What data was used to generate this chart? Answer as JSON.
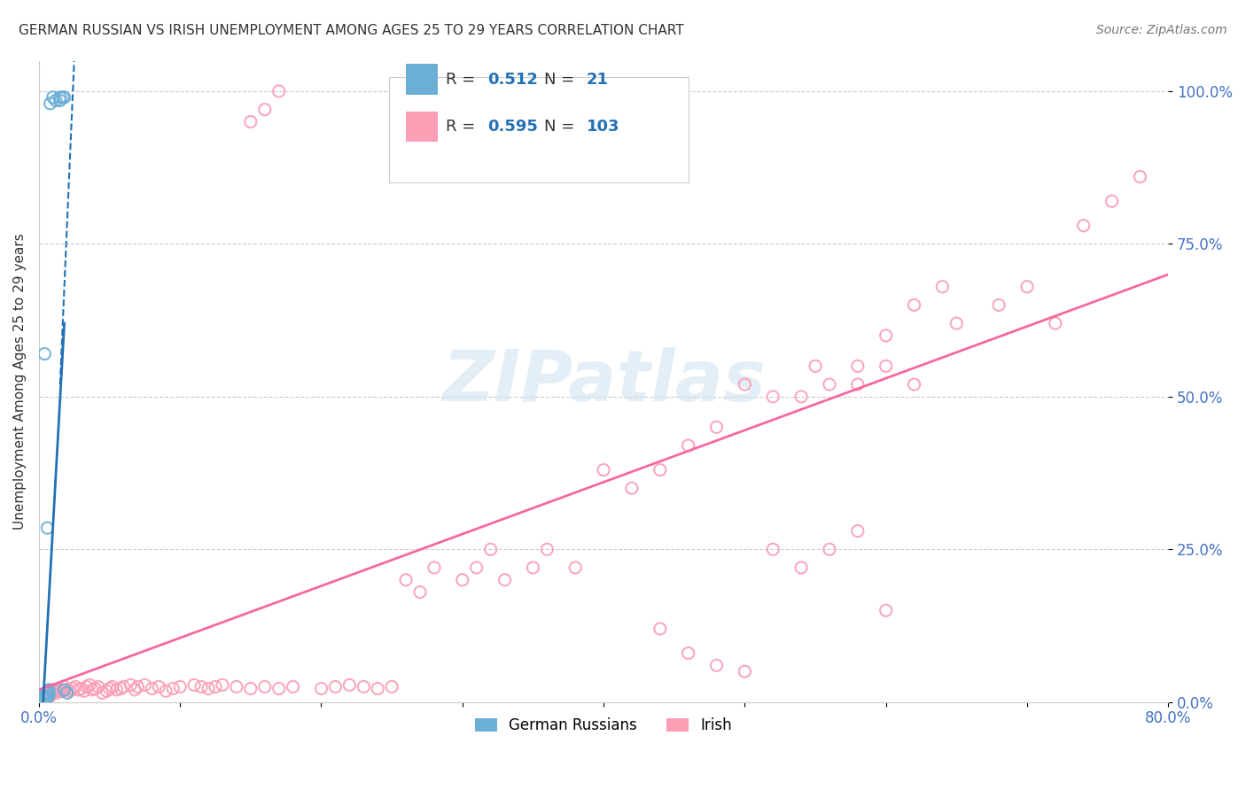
{
  "title": "GERMAN RUSSIAN VS IRISH UNEMPLOYMENT AMONG AGES 25 TO 29 YEARS CORRELATION CHART",
  "source": "Source: ZipAtlas.com",
  "ylabel": "Unemployment Among Ages 25 to 29 years",
  "xlim": [
    0.0,
    0.8
  ],
  "ylim": [
    0.0,
    1.05
  ],
  "y_ticks": [
    0.0,
    0.25,
    0.5,
    0.75,
    1.0
  ],
  "y_tick_labels": [
    "0.0%",
    "25.0%",
    "50.0%",
    "75.0%",
    "100.0%"
  ],
  "german_russian_color": "#6baed6",
  "irish_color": "#fa9fb5",
  "trendline_gr_color": "#2171b5",
  "trendline_irish_color": "#f768a1",
  "legend_R_gr": "0.512",
  "legend_N_gr": "21",
  "legend_R_ir": "0.595",
  "legend_N_ir": "103",
  "watermark": "ZIPatlas",
  "german_russian_x": [
    0.003,
    0.003,
    0.004,
    0.004,
    0.005,
    0.005,
    0.006,
    0.006,
    0.006,
    0.007,
    0.007,
    0.007,
    0.008,
    0.01,
    0.012,
    0.015,
    0.015,
    0.017,
    0.018,
    0.018,
    0.02
  ],
  "german_russian_y": [
    0.005,
    0.01,
    0.008,
    0.57,
    0.005,
    0.015,
    0.008,
    0.015,
    0.285,
    0.01,
    0.015,
    0.02,
    0.98,
    0.99,
    0.985,
    0.985,
    0.99,
    0.99,
    0.02,
    0.99,
    0.015
  ],
  "irish_x": [
    0.005,
    0.006,
    0.007,
    0.008,
    0.009,
    0.01,
    0.011,
    0.012,
    0.013,
    0.015,
    0.016,
    0.017,
    0.018,
    0.02,
    0.022,
    0.024,
    0.026,
    0.028,
    0.03,
    0.032,
    0.034,
    0.036,
    0.038,
    0.04,
    0.042,
    0.045,
    0.048,
    0.05,
    0.052,
    0.055,
    0.058,
    0.06,
    0.065,
    0.068,
    0.07,
    0.075,
    0.08,
    0.085,
    0.09,
    0.095,
    0.1,
    0.11,
    0.115,
    0.12,
    0.125,
    0.13,
    0.14,
    0.15,
    0.16,
    0.17,
    0.18,
    0.2,
    0.21,
    0.22,
    0.23,
    0.24,
    0.25,
    0.26,
    0.27,
    0.28,
    0.3,
    0.31,
    0.32,
    0.33,
    0.35,
    0.36,
    0.38,
    0.4,
    0.42,
    0.44,
    0.46,
    0.48,
    0.5,
    0.52,
    0.55,
    0.58,
    0.6,
    0.62,
    0.65,
    0.68,
    0.7,
    0.72,
    0.74,
    0.76,
    0.78,
    0.54,
    0.56,
    0.58,
    0.6,
    0.62,
    0.64,
    0.52,
    0.54,
    0.56,
    0.58,
    0.6,
    0.44,
    0.46,
    0.48,
    0.5,
    0.15,
    0.16,
    0.17
  ],
  "irish_y": [
    0.015,
    0.012,
    0.018,
    0.01,
    0.02,
    0.015,
    0.018,
    0.02,
    0.015,
    0.018,
    0.02,
    0.018,
    0.025,
    0.02,
    0.018,
    0.022,
    0.025,
    0.02,
    0.022,
    0.018,
    0.025,
    0.028,
    0.02,
    0.022,
    0.025,
    0.015,
    0.018,
    0.022,
    0.025,
    0.02,
    0.022,
    0.025,
    0.028,
    0.02,
    0.025,
    0.028,
    0.022,
    0.025,
    0.018,
    0.022,
    0.025,
    0.028,
    0.025,
    0.022,
    0.025,
    0.028,
    0.025,
    0.022,
    0.025,
    0.022,
    0.025,
    0.022,
    0.025,
    0.028,
    0.025,
    0.022,
    0.025,
    0.2,
    0.18,
    0.22,
    0.2,
    0.22,
    0.25,
    0.2,
    0.22,
    0.25,
    0.22,
    0.38,
    0.35,
    0.38,
    0.42,
    0.45,
    0.52,
    0.5,
    0.55,
    0.52,
    0.55,
    0.52,
    0.62,
    0.65,
    0.68,
    0.62,
    0.78,
    0.82,
    0.86,
    0.5,
    0.52,
    0.55,
    0.6,
    0.65,
    0.68,
    0.25,
    0.22,
    0.25,
    0.28,
    0.15,
    0.12,
    0.08,
    0.06,
    0.05,
    0.95,
    0.97,
    1.0
  ]
}
